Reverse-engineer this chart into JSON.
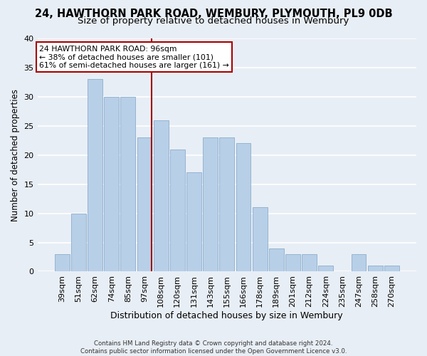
{
  "title": "24, HAWTHORN PARK ROAD, WEMBURY, PLYMOUTH, PL9 0DB",
  "subtitle": "Size of property relative to detached houses in Wembury",
  "xlabel": "Distribution of detached houses by size in Wembury",
  "ylabel": "Number of detached properties",
  "categories": [
    "39sqm",
    "51sqm",
    "62sqm",
    "74sqm",
    "85sqm",
    "97sqm",
    "108sqm",
    "120sqm",
    "131sqm",
    "143sqm",
    "155sqm",
    "166sqm",
    "178sqm",
    "189sqm",
    "201sqm",
    "212sqm",
    "224sqm",
    "235sqm",
    "247sqm",
    "258sqm",
    "270sqm"
  ],
  "values": [
    3,
    10,
    33,
    30,
    30,
    23,
    26,
    21,
    17,
    23,
    23,
    22,
    11,
    4,
    3,
    3,
    1,
    0,
    3,
    1,
    1
  ],
  "bar_color": "#b8cfe8",
  "bar_edge_color": "#8aadcc",
  "highlight_index": 5,
  "highlight_line_color": "#9b0000",
  "ylim": [
    0,
    40
  ],
  "yticks": [
    0,
    5,
    10,
    15,
    20,
    25,
    30,
    35,
    40
  ],
  "annotation_title": "24 HAWTHORN PARK ROAD: 96sqm",
  "annotation_line1": "← 38% of detached houses are smaller (101)",
  "annotation_line2": "61% of semi-detached houses are larger (161) →",
  "annotation_box_color": "#ffffff",
  "annotation_box_edge_color": "#aa0000",
  "footer1": "Contains HM Land Registry data © Crown copyright and database right 2024.",
  "footer2": "Contains public sector information licensed under the Open Government Licence v3.0.",
  "background_color": "#e8eef5",
  "grid_color": "#ffffff",
  "title_fontsize": 10.5,
  "subtitle_fontsize": 9.5
}
